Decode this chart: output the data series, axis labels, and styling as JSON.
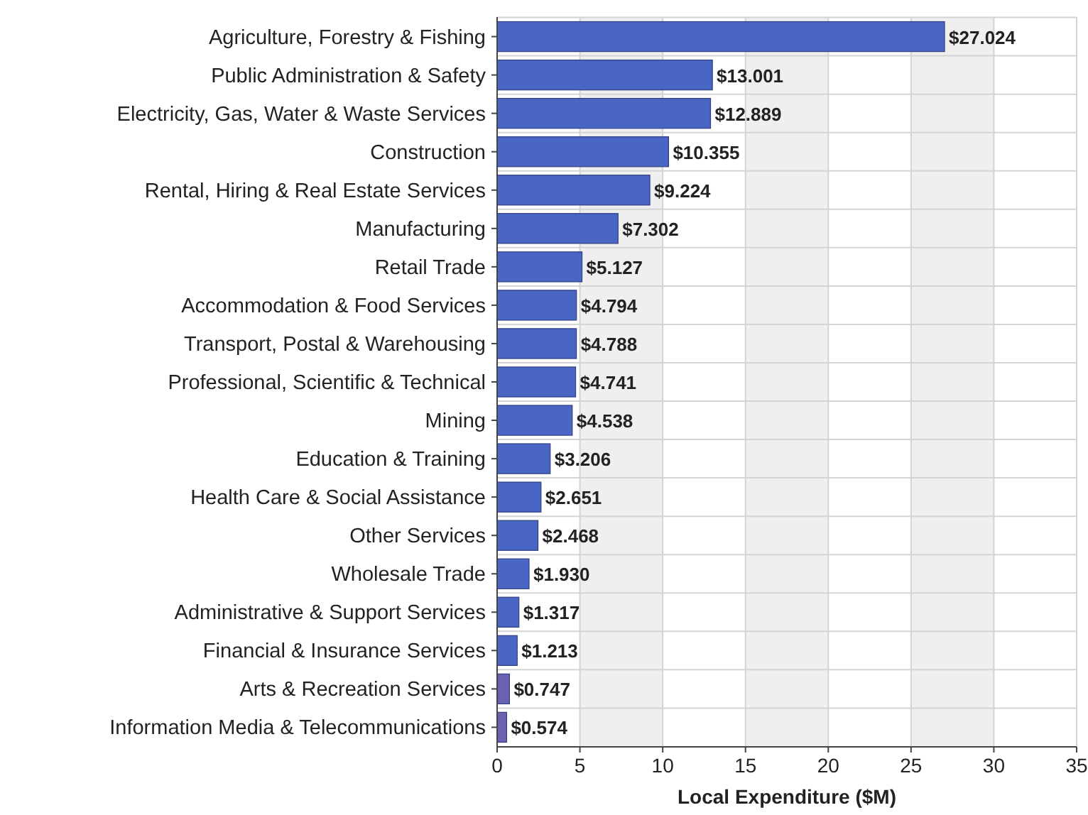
{
  "chart_data": {
    "type": "bar",
    "orientation": "horizontal",
    "xlabel": "Local Expenditure ($M)",
    "categories": [
      "Agriculture, Forestry & Fishing",
      "Public Administration & Safety",
      "Electricity, Gas, Water & Waste Services",
      "Construction",
      "Rental, Hiring & Real Estate Services",
      "Manufacturing",
      "Retail Trade",
      "Accommodation & Food Services",
      "Transport, Postal & Warehousing",
      "Professional, Scientific & Technical",
      "Mining",
      "Education & Training",
      "Health Care & Social Assistance",
      "Other Services",
      "Wholesale Trade",
      "Administrative & Support Services",
      "Financial & Insurance Services",
      "Arts & Recreation Services",
      "Information Media & Telecommunications"
    ],
    "values": [
      27.024,
      13.001,
      12.889,
      10.355,
      9.224,
      7.302,
      5.127,
      4.794,
      4.788,
      4.741,
      4.538,
      3.206,
      2.651,
      2.468,
      1.93,
      1.317,
      1.213,
      0.747,
      0.574
    ],
    "value_labels": [
      "$27.024",
      "$13.001",
      "$12.889",
      "$10.355",
      "$9.224",
      "$7.302",
      "$5.127",
      "$4.794",
      "$4.788",
      "$4.741",
      "$4.538",
      "$3.206",
      "$2.651",
      "$2.468",
      "$1.930",
      "$1.317",
      "$1.213",
      "$0.747",
      "$0.574"
    ],
    "colors": [
      "#4a66c4",
      "#4a66c4",
      "#4a66c4",
      "#4a66c4",
      "#4a66c4",
      "#4a66c4",
      "#4a66c4",
      "#4a66c4",
      "#4a66c4",
      "#4a66c4",
      "#4a66c4",
      "#4a66c4",
      "#4a66c4",
      "#4a66c4",
      "#4a66c4",
      "#4a66c4",
      "#4a66c4",
      "#6a62b0",
      "#6a62b0"
    ],
    "xlim": [
      0,
      35
    ],
    "xticks": [
      0,
      5,
      10,
      15,
      20,
      25,
      30,
      35
    ],
    "grid": true
  }
}
